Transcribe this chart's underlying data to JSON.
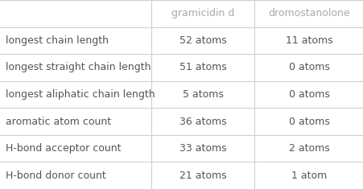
{
  "columns": [
    "",
    "gramicidin d",
    "dromostanolone"
  ],
  "rows": [
    [
      "longest chain length",
      "52 atoms",
      "11 atoms"
    ],
    [
      "longest straight chain length",
      "51 atoms",
      "0 atoms"
    ],
    [
      "longest aliphatic chain length",
      "5 atoms",
      "0 atoms"
    ],
    [
      "aromatic atom count",
      "36 atoms",
      "0 atoms"
    ],
    [
      "H-bond acceptor count",
      "33 atoms",
      "2 atoms"
    ],
    [
      "H-bond donor count",
      "21 atoms",
      "1 atom"
    ]
  ],
  "header_text_color": "#aaaaaa",
  "row_label_color": "#555555",
  "cell_value_color": "#555555",
  "grid_color": "#cccccc",
  "background_color": "#ffffff",
  "header_fontsize": 9.0,
  "cell_fontsize": 9.0,
  "figsize": [
    4.52,
    2.35
  ],
  "dpi": 100
}
